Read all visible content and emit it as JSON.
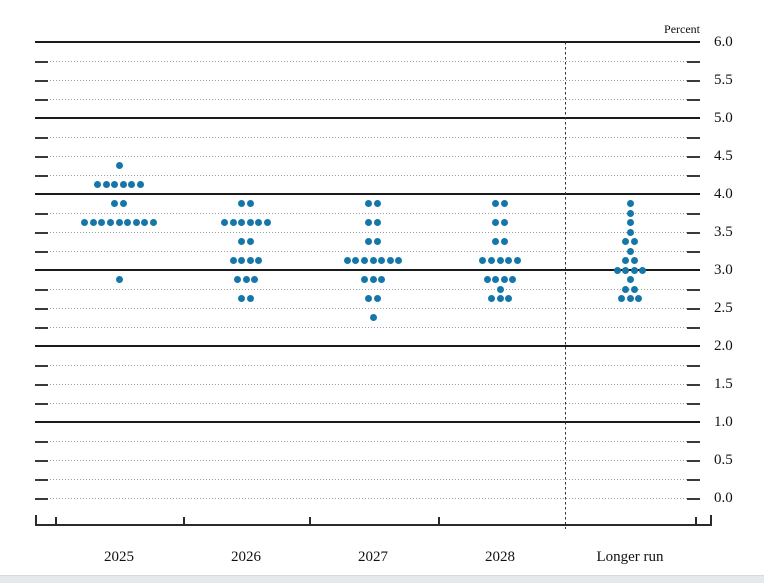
{
  "chart_data": {
    "type": "scatter",
    "variant": "fomc-dot-plot",
    "unit_label": "Percent",
    "categories": [
      "2025",
      "2026",
      "2027",
      "2028",
      "Longer run"
    ],
    "y_axis": {
      "min": 0.0,
      "max": 6.0,
      "label_step": 0.5,
      "grid_step": 0.25,
      "solid_gridlines": [
        1.0,
        2.0,
        3.0,
        4.0,
        5.0,
        6.0
      ],
      "ticks": [
        {
          "value": 6.0,
          "label": "6.0"
        },
        {
          "value": 5.5,
          "label": "5.5"
        },
        {
          "value": 5.0,
          "label": "5.0"
        },
        {
          "value": 4.5,
          "label": "4.5"
        },
        {
          "value": 4.0,
          "label": "4.0"
        },
        {
          "value": 3.5,
          "label": "3.5"
        },
        {
          "value": 3.0,
          "label": "3.0"
        },
        {
          "value": 2.5,
          "label": "2.5"
        },
        {
          "value": 2.0,
          "label": "2.0"
        },
        {
          "value": 1.5,
          "label": "1.5"
        },
        {
          "value": 1.0,
          "label": "1.0"
        },
        {
          "value": 0.5,
          "label": "0.5"
        },
        {
          "value": 0.0,
          "label": "0.0"
        }
      ]
    },
    "series": [
      {
        "category": "2025",
        "dots": [
          {
            "value": 4.375,
            "count": 1
          },
          {
            "value": 4.125,
            "count": 6
          },
          {
            "value": 3.875,
            "count": 2
          },
          {
            "value": 3.625,
            "count": 9
          },
          {
            "value": 2.875,
            "count": 1
          }
        ]
      },
      {
        "category": "2026",
        "dots": [
          {
            "value": 3.875,
            "count": 2
          },
          {
            "value": 3.625,
            "count": 6
          },
          {
            "value": 3.375,
            "count": 2
          },
          {
            "value": 3.125,
            "count": 4
          },
          {
            "value": 2.875,
            "count": 3
          },
          {
            "value": 2.625,
            "count": 2
          }
        ]
      },
      {
        "category": "2027",
        "dots": [
          {
            "value": 3.875,
            "count": 2
          },
          {
            "value": 3.625,
            "count": 2
          },
          {
            "value": 3.375,
            "count": 2
          },
          {
            "value": 3.125,
            "count": 7
          },
          {
            "value": 2.875,
            "count": 3
          },
          {
            "value": 2.625,
            "count": 2
          },
          {
            "value": 2.375,
            "count": 1
          }
        ]
      },
      {
        "category": "2028",
        "dots": [
          {
            "value": 3.875,
            "count": 2
          },
          {
            "value": 3.625,
            "count": 2
          },
          {
            "value": 3.375,
            "count": 2
          },
          {
            "value": 3.125,
            "count": 5
          },
          {
            "value": 2.875,
            "count": 4
          },
          {
            "value": 2.75,
            "count": 1
          },
          {
            "value": 2.625,
            "count": 3
          }
        ]
      },
      {
        "category": "Longer run",
        "dots": [
          {
            "value": 3.875,
            "count": 1
          },
          {
            "value": 3.75,
            "count": 1
          },
          {
            "value": 3.625,
            "count": 1
          },
          {
            "value": 3.5,
            "count": 1
          },
          {
            "value": 3.375,
            "count": 2
          },
          {
            "value": 3.25,
            "count": 1
          },
          {
            "value": 3.125,
            "count": 2
          },
          {
            "value": 3.0,
            "count": 4
          },
          {
            "value": 2.875,
            "count": 1
          },
          {
            "value": 2.75,
            "count": 2
          },
          {
            "value": 2.625,
            "count": 3
          }
        ]
      }
    ],
    "separator": {
      "after_category": "2028",
      "style": "dashed"
    },
    "colors": {
      "dot": "#1577a9",
      "solid_gridline": "#1a1a1a",
      "dotted_gridline": "#9c9c9c",
      "axis": "#2b2b2b"
    }
  }
}
